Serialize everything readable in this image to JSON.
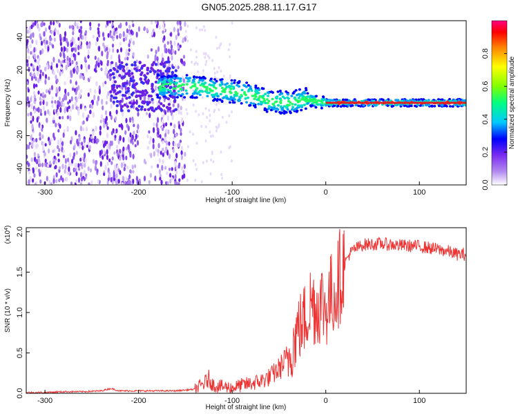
{
  "title": "GN05.2025.288.11.17.G17",
  "chart_data": [
    {
      "type": "heatmap",
      "xlabel": "Height of straight line (km)",
      "ylabel": "Frequency (Hz)",
      "xlim": [
        -320,
        150
      ],
      "ylim": [
        -50,
        50
      ],
      "xticks": [
        -300,
        -200,
        -100,
        0,
        100
      ],
      "yticks": [
        -40,
        -20,
        0,
        20,
        40
      ],
      "colorbar": {
        "label": "Normalized spectral amplitude",
        "range": [
          0,
          1
        ],
        "ticks": [
          "0.0",
          "0.2",
          "0.4",
          "0.6",
          "0.8"
        ],
        "tick_values": [
          0.0,
          0.2,
          0.4,
          0.6,
          0.8
        ],
        "colors": [
          "#ffffff",
          "#b38cf0",
          "#7b2cf0",
          "#0000ff",
          "#00c8ff",
          "#00ff80",
          "#80ff00",
          "#ffff00",
          "#ff8000",
          "#ff0000",
          "#ff0080"
        ]
      },
      "ridge": {
        "x": [
          -180,
          -160,
          -140,
          -120,
          -100,
          -80,
          -60,
          -40,
          -20,
          0,
          20,
          60,
          100,
          150
        ],
        "y": [
          10,
          10,
          10,
          8,
          7,
          5,
          1,
          0,
          2,
          0,
          0,
          0,
          0,
          0
        ]
      }
    },
    {
      "type": "line",
      "xlabel": "Height of straight line (km)",
      "ylabel": "SNR (10 * v/v)",
      "yscale_label": "(x10",
      "yscale_exp": "4",
      "yscale_close": ")",
      "xlim": [
        -320,
        150
      ],
      "ylim": [
        0,
        2.05
      ],
      "xticks": [
        -300,
        -200,
        -100,
        0,
        100
      ],
      "yticks": [
        "0.0",
        "0.5",
        "1.0",
        "1.5",
        "2.0"
      ],
      "ytick_values": [
        0.0,
        0.5,
        1.0,
        1.5,
        2.0
      ],
      "color": "#ee3333",
      "series": [
        {
          "x": [
            -320,
            -300,
            -280,
            -260,
            -240,
            -230,
            -220,
            -200,
            -180,
            -160,
            -140,
            -130,
            -125,
            -120,
            -110,
            -100,
            -90,
            -80,
            -70,
            -60,
            -50,
            -40,
            -35,
            -30,
            -25,
            -20,
            -15,
            -10,
            -5,
            0,
            5,
            10,
            15,
            20,
            25,
            30,
            40,
            60,
            80,
            100,
            110,
            120,
            130,
            140,
            150
          ],
          "y": [
            0.01,
            0.01,
            0.02,
            0.02,
            0.03,
            0.06,
            0.03,
            0.03,
            0.03,
            0.03,
            0.05,
            0.12,
            0.18,
            0.1,
            0.08,
            0.07,
            0.1,
            0.12,
            0.15,
            0.2,
            0.3,
            0.45,
            0.6,
            0.8,
            0.85,
            1.0,
            1.15,
            1.05,
            1.15,
            1.05,
            1.2,
            1.25,
            1.45,
            1.6,
            1.72,
            1.78,
            1.84,
            1.85,
            1.83,
            1.82,
            1.8,
            1.78,
            1.76,
            1.72,
            1.72
          ]
        }
      ]
    }
  ]
}
